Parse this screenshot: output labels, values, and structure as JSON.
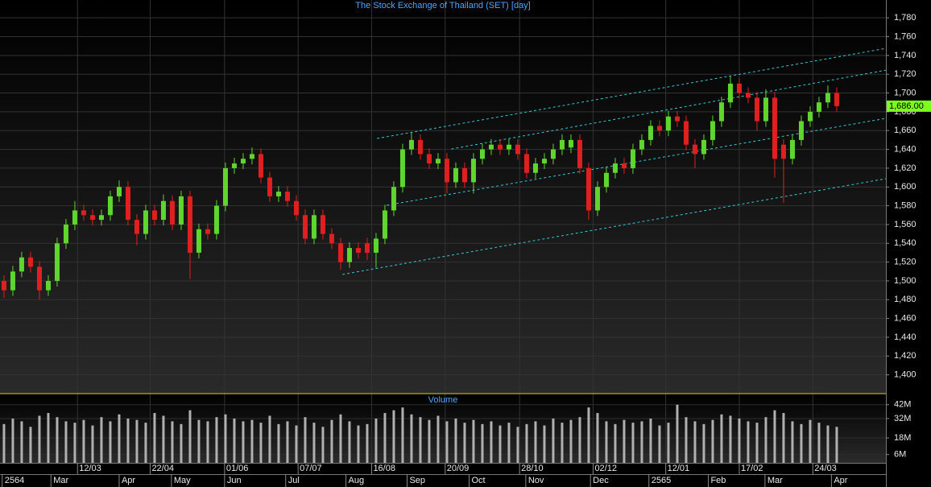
{
  "chart_data": {
    "type": "candlestick",
    "title": "The Stock Exchange of Thailand (SET) [day]",
    "xlim": [
      -0.45,
      99.55
    ],
    "xticks": [
      {
        "value": 8.3,
        "label": "12/03"
      },
      {
        "value": 16.5,
        "label": "22/04"
      },
      {
        "value": 24.9,
        "label": "01/06"
      },
      {
        "value": 33.2,
        "label": "07/07"
      },
      {
        "value": 41.5,
        "label": "16/08"
      },
      {
        "value": 49.8,
        "label": "20/09"
      },
      {
        "value": 58.2,
        "label": "28/10"
      },
      {
        "value": 66.5,
        "label": "02/12"
      },
      {
        "value": 74.7,
        "label": "12/01"
      },
      {
        "value": 83,
        "label": "17/02"
      },
      {
        "value": 91.3,
        "label": "24/03"
      }
    ],
    "x_period_ticks": [
      {
        "value": -0.2,
        "label": "2564"
      },
      {
        "value": 5.3,
        "label": "Mar"
      },
      {
        "value": 13,
        "label": "Apr"
      },
      {
        "value": 18.9,
        "label": "May"
      },
      {
        "value": 24.9,
        "label": "Jun"
      },
      {
        "value": 31.8,
        "label": "Jul"
      },
      {
        "value": 38.6,
        "label": "Aug"
      },
      {
        "value": 45.5,
        "label": "Sep"
      },
      {
        "value": 52.5,
        "label": "Oct"
      },
      {
        "value": 58.9,
        "label": "Nov"
      },
      {
        "value": 66.2,
        "label": "Dec"
      },
      {
        "value": 72.8,
        "label": "2565"
      },
      {
        "value": 79.5,
        "label": "Feb"
      },
      {
        "value": 85.9,
        "label": "Mar"
      },
      {
        "value": 93.4,
        "label": "Apr"
      }
    ],
    "ylim": [
      1380,
      1799
    ],
    "yticks": [
      {
        "value": 1400,
        "label": "1,400"
      },
      {
        "value": 1420,
        "label": "1,420"
      },
      {
        "value": 1440,
        "label": "1,440"
      },
      {
        "value": 1460,
        "label": "1,460"
      },
      {
        "value": 1480,
        "label": "1,480"
      },
      {
        "value": 1500,
        "label": "1,500"
      },
      {
        "value": 1520,
        "label": "1,520"
      },
      {
        "value": 1540,
        "label": "1,540"
      },
      {
        "value": 1560,
        "label": "1,560"
      },
      {
        "value": 1580,
        "label": "1,580"
      },
      {
        "value": 1600,
        "label": "1,600"
      },
      {
        "value": 1620,
        "label": "1,620"
      },
      {
        "value": 1640,
        "label": "1,640"
      },
      {
        "value": 1660,
        "label": "1,660"
      },
      {
        "value": 1680,
        "label": "1,680"
      },
      {
        "value": 1700,
        "label": "1,700"
      },
      {
        "value": 1720,
        "label": "1,720"
      },
      {
        "value": 1740,
        "label": "1,740"
      },
      {
        "value": 1760,
        "label": "1,760"
      },
      {
        "value": 1780,
        "label": "1,780"
      }
    ],
    "grid": true,
    "up_color": "#5fd62e",
    "down_color": "#e02020",
    "open": [
      1500,
      1490,
      1510,
      1525,
      1515,
      1490,
      1500,
      1540,
      1560,
      1575,
      1570,
      1565,
      1570,
      1590,
      1600,
      1565,
      1550,
      1575,
      1565,
      1585,
      1560,
      1590,
      1530,
      1555,
      1550,
      1580,
      1620,
      1625,
      1630,
      1635,
      1610,
      1590,
      1595,
      1585,
      1570,
      1545,
      1570,
      1550,
      1540,
      1520,
      1535,
      1540,
      1530,
      1545,
      1575,
      1600,
      1640,
      1650,
      1635,
      1625,
      1630,
      1605,
      1620,
      1605,
      1630,
      1640,
      1645,
      1640,
      1645,
      1635,
      1615,
      1625,
      1630,
      1640,
      1642,
      1650,
      1620,
      1575,
      1600,
      1615,
      1625,
      1620,
      1640,
      1650,
      1665,
      1660,
      1675,
      1670,
      1645,
      1635,
      1650,
      1670,
      1690,
      1710,
      1700,
      1695,
      1670,
      1695,
      1645,
      1630,
      1650,
      1670,
      1680,
      1690,
      1700
    ],
    "high": [
      1506,
      1516,
      1531,
      1531,
      1521,
      1506,
      1546,
      1566,
      1585,
      1581,
      1576,
      1576,
      1596,
      1607,
      1606,
      1571,
      1581,
      1581,
      1592,
      1591,
      1596,
      1596,
      1561,
      1561,
      1586,
      1626,
      1631,
      1636,
      1642,
      1641,
      1616,
      1601,
      1601,
      1591,
      1576,
      1576,
      1576,
      1556,
      1546,
      1541,
      1541,
      1546,
      1551,
      1581,
      1606,
      1646,
      1658,
      1656,
      1641,
      1636,
      1636,
      1626,
      1626,
      1636,
      1646,
      1651,
      1651,
      1651,
      1651,
      1641,
      1631,
      1636,
      1646,
      1656,
      1656,
      1656,
      1626,
      1606,
      1621,
      1631,
      1631,
      1646,
      1656,
      1671,
      1671,
      1681,
      1681,
      1676,
      1651,
      1656,
      1676,
      1696,
      1718,
      1716,
      1706,
      1701,
      1704,
      1701,
      1651,
      1656,
      1676,
      1686,
      1696,
      1708,
      1706
    ],
    "low": [
      1482,
      1484,
      1504,
      1509,
      1480,
      1484,
      1494,
      1534,
      1554,
      1564,
      1559,
      1559,
      1564,
      1584,
      1559,
      1538,
      1544,
      1559,
      1559,
      1554,
      1554,
      1502,
      1524,
      1544,
      1544,
      1574,
      1614,
      1619,
      1624,
      1604,
      1584,
      1584,
      1579,
      1564,
      1539,
      1539,
      1544,
      1534,
      1512,
      1514,
      1524,
      1522,
      1514,
      1539,
      1569,
      1594,
      1634,
      1629,
      1619,
      1619,
      1593,
      1599,
      1599,
      1593,
      1624,
      1634,
      1634,
      1634,
      1629,
      1609,
      1609,
      1619,
      1624,
      1634,
      1636,
      1614,
      1565,
      1569,
      1594,
      1609,
      1614,
      1614,
      1634,
      1644,
      1654,
      1654,
      1664,
      1639,
      1620,
      1629,
      1644,
      1664,
      1684,
      1694,
      1689,
      1660,
      1664,
      1610,
      1583,
      1624,
      1644,
      1664,
      1674,
      1684,
      1680
    ],
    "close": [
      1490,
      1510,
      1525,
      1515,
      1490,
      1500,
      1540,
      1560,
      1575,
      1570,
      1565,
      1570,
      1590,
      1600,
      1565,
      1550,
      1575,
      1565,
      1585,
      1560,
      1590,
      1530,
      1555,
      1550,
      1580,
      1620,
      1625,
      1630,
      1635,
      1610,
      1590,
      1595,
      1585,
      1570,
      1545,
      1570,
      1550,
      1540,
      1520,
      1535,
      1530,
      1530,
      1545,
      1575,
      1600,
      1640,
      1650,
      1635,
      1625,
      1630,
      1605,
      1620,
      1605,
      1630,
      1640,
      1645,
      1640,
      1645,
      1635,
      1615,
      1625,
      1630,
      1640,
      1650,
      1650,
      1620,
      1575,
      1600,
      1615,
      1625,
      1620,
      1640,
      1650,
      1665,
      1660,
      1675,
      1670,
      1645,
      1635,
      1650,
      1670,
      1690,
      1710,
      1700,
      1695,
      1670,
      1695,
      1630,
      1630,
      1650,
      1670,
      1680,
      1690,
      1700,
      1686
    ],
    "trend_lines": [
      {
        "x": [
          42.1,
          99.55
        ],
        "y": [
          1651.6,
          1747.5
        ]
      },
      {
        "x": [
          50.5,
          99.55
        ],
        "y": [
          1640.4,
          1724.3
        ]
      },
      {
        "x": [
          43.2,
          99.55
        ],
        "y": [
          1580.5,
          1673
        ]
      },
      {
        "x": [
          38.2,
          99.55
        ],
        "y": [
          1506.9,
          1608.8
        ]
      }
    ],
    "last_price": {
      "value": 1686,
      "label": "1,686.00"
    },
    "volume": {
      "title": "Volume",
      "color": "#b0b0b0",
      "ylim": [
        0,
        50
      ],
      "yticks": [
        {
          "value": 6,
          "label": "6M"
        },
        {
          "value": 18,
          "label": "18M"
        },
        {
          "value": 32,
          "label": "32M"
        },
        {
          "value": 42,
          "label": "42M"
        }
      ],
      "values": [
        28,
        32,
        30,
        26,
        34,
        36,
        33,
        30,
        29,
        31,
        27,
        33,
        30,
        35,
        32,
        31,
        29,
        36,
        34,
        30,
        28,
        38,
        31,
        30,
        33,
        35,
        32,
        30,
        31,
        29,
        34,
        28,
        30,
        27,
        33,
        29,
        26,
        31,
        35,
        30,
        27,
        28,
        32,
        36,
        38,
        40,
        35,
        33,
        31,
        34,
        30,
        32,
        29,
        31,
        28,
        30,
        27,
        29,
        26,
        28,
        30,
        27,
        32,
        29,
        31,
        33,
        40,
        36,
        30,
        28,
        31,
        29,
        30,
        32,
        27,
        29,
        42,
        33,
        30,
        28,
        31,
        35,
        34,
        32,
        30,
        29,
        33,
        38,
        36,
        30,
        28,
        31,
        29,
        27,
        26
      ]
    }
  }
}
